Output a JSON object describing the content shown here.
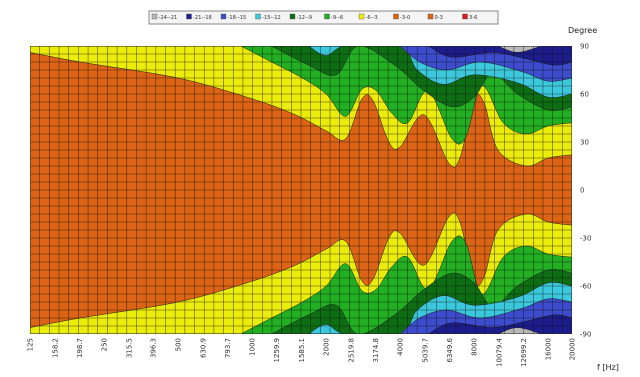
{
  "chart_data": {
    "type": "heatmap",
    "title": "",
    "xlabel": "f [Hz]",
    "ylabel": "Degree",
    "x_scale": "log",
    "x_ticks": [
      "125",
      "158.2",
      "198.7",
      "250",
      "315.5",
      "396.3",
      "500",
      "630.9",
      "793.7",
      "1000",
      "1259.9",
      "1585.1",
      "2000",
      "2519.8",
      "3174.8",
      "4000",
      "5039.7",
      "6349.6",
      "8000",
      "10079.4",
      "12699.2",
      "16000",
      "20000"
    ],
    "y_ticks": [
      "90",
      "60",
      "30",
      "0",
      "-30",
      "-60",
      "-90"
    ],
    "ylim": [
      -90,
      90
    ],
    "grid": true,
    "legend_position": "top-center",
    "legend": [
      {
        "label": "-24--21",
        "color": "#b8b8b8"
      },
      {
        "label": "-21--18",
        "color": "#1c1c8c"
      },
      {
        "label": "-18--15",
        "color": "#3c4ccc"
      },
      {
        "label": "-15--12",
        "color": "#3cc8dc"
      },
      {
        "label": "-12--9",
        "color": "#0e6e14"
      },
      {
        "label": "-9--6",
        "color": "#22b022"
      },
      {
        "label": "-6--3",
        "color": "#ecec0a"
      },
      {
        "label": "-3-0",
        "color": "#d8640a"
      },
      {
        "label": "0-3",
        "color": "#dc6414"
      },
      {
        "label": "3-6",
        "color": "#dc1a1a"
      }
    ],
    "bands": [
      {
        "label": "-6--3",
        "color": "#ecec0a",
        "upper": [
          [
            125,
            86
          ],
          [
            200,
            80
          ],
          [
            500,
            70
          ],
          [
            1000,
            57
          ],
          [
            1500,
            47
          ],
          [
            2000,
            37
          ],
          [
            2400,
            32
          ],
          [
            2800,
            57
          ],
          [
            3100,
            56
          ],
          [
            3600,
            30
          ],
          [
            4000,
            27
          ],
          [
            5000,
            47
          ],
          [
            6300,
            17
          ],
          [
            7000,
            20
          ],
          [
            8000,
            57
          ],
          [
            8800,
            54
          ],
          [
            10000,
            25
          ],
          [
            13000,
            15
          ],
          [
            16000,
            20
          ],
          [
            20000,
            22
          ]
        ],
        "lower": [
          [
            125,
            -86
          ],
          [
            200,
            -80
          ],
          [
            500,
            -70
          ],
          [
            1000,
            -57
          ],
          [
            1500,
            -47
          ],
          [
            2000,
            -37
          ],
          [
            2400,
            -32
          ],
          [
            2800,
            -57
          ],
          [
            3100,
            -56
          ],
          [
            3600,
            -30
          ],
          [
            4000,
            -27
          ],
          [
            5000,
            -47
          ],
          [
            6300,
            -17
          ],
          [
            7000,
            -20
          ],
          [
            8000,
            -57
          ],
          [
            8800,
            -54
          ],
          [
            10000,
            -25
          ],
          [
            13000,
            -15
          ],
          [
            16000,
            -20
          ],
          [
            20000,
            -22
          ]
        ]
      },
      {
        "label": "-9--6",
        "color": "#22b022",
        "upper": [
          [
            900,
            90
          ],
          [
            1200,
            80
          ],
          [
            1600,
            70
          ],
          [
            2000,
            60
          ],
          [
            2400,
            46
          ],
          [
            2800,
            63
          ],
          [
            3200,
            62
          ],
          [
            3700,
            48
          ],
          [
            4300,
            42
          ],
          [
            5200,
            62
          ],
          [
            6500,
            32
          ],
          [
            7400,
            33
          ],
          [
            8600,
            65
          ],
          [
            10500,
            42
          ],
          [
            13000,
            35
          ],
          [
            16000,
            40
          ],
          [
            20000,
            42
          ]
        ],
        "lower": [
          [
            900,
            -90
          ],
          [
            1200,
            -80
          ],
          [
            1600,
            -70
          ],
          [
            2000,
            -60
          ],
          [
            2400,
            -46
          ],
          [
            2800,
            -63
          ],
          [
            3200,
            -62
          ],
          [
            3700,
            -48
          ],
          [
            4300,
            -42
          ],
          [
            5200,
            -62
          ],
          [
            6500,
            -32
          ],
          [
            7400,
            -33
          ],
          [
            8600,
            -65
          ],
          [
            10500,
            -42
          ],
          [
            13000,
            -35
          ],
          [
            16000,
            -40
          ],
          [
            20000,
            -42
          ]
        ]
      },
      {
        "label": "-12--9",
        "color": "#0e6e14",
        "upper": [
          [
            1200,
            90
          ],
          [
            1700,
            78
          ],
          [
            2200,
            72
          ],
          [
            2700,
            90
          ],
          [
            3800,
            78
          ],
          [
            5000,
            62
          ],
          [
            6500,
            52
          ],
          [
            8000,
            58
          ],
          [
            9500,
            73
          ],
          [
            12000,
            60
          ],
          [
            16000,
            50
          ],
          [
            20000,
            52
          ]
        ],
        "lower": [
          [
            1200,
            -90
          ],
          [
            1700,
            -78
          ],
          [
            2200,
            -72
          ],
          [
            2700,
            -90
          ],
          [
            3800,
            -78
          ],
          [
            5000,
            -62
          ],
          [
            6500,
            -52
          ],
          [
            8000,
            -58
          ],
          [
            9500,
            -73
          ],
          [
            12000,
            -60
          ],
          [
            16000,
            -50
          ],
          [
            20000,
            -52
          ]
        ]
      },
      {
        "label": "-15--12",
        "color": "#3cc8dc",
        "upper": [
          [
            1700,
            90
          ],
          [
            2000,
            84
          ],
          [
            2400,
            90
          ],
          [
            4000,
            90
          ],
          [
            4700,
            75
          ],
          [
            6000,
            66
          ],
          [
            8000,
            72
          ],
          [
            12000,
            67
          ],
          [
            16000,
            58
          ],
          [
            20000,
            60
          ]
        ],
        "lower": [
          [
            1700,
            -90
          ],
          [
            2000,
            -84
          ],
          [
            2400,
            -90
          ],
          [
            4000,
            -90
          ],
          [
            4700,
            -75
          ],
          [
            6000,
            -66
          ],
          [
            8000,
            -72
          ],
          [
            12000,
            -67
          ],
          [
            16000,
            -58
          ],
          [
            20000,
            -60
          ]
        ]
      },
      {
        "label": "-18--15",
        "color": "#3c4ccc",
        "upper": [
          [
            4000,
            90
          ],
          [
            4800,
            80
          ],
          [
            6200,
            75
          ],
          [
            8500,
            80
          ],
          [
            12500,
            74
          ],
          [
            16000,
            68
          ],
          [
            20000,
            70
          ]
        ],
        "lower": [
          [
            4000,
            -90
          ],
          [
            4800,
            -80
          ],
          [
            6200,
            -75
          ],
          [
            8500,
            -80
          ],
          [
            12500,
            -74
          ],
          [
            16000,
            -68
          ],
          [
            20000,
            -70
          ]
        ]
      },
      {
        "label": "-21--18",
        "color": "#1c1c8c",
        "upper": [
          [
            5200,
            90
          ],
          [
            6500,
            83
          ],
          [
            9500,
            86
          ],
          [
            13000,
            82
          ],
          [
            17000,
            78
          ],
          [
            20000,
            80
          ]
        ],
        "lower": [
          [
            5200,
            -90
          ],
          [
            6500,
            -83
          ],
          [
            9500,
            -86
          ],
          [
            13000,
            -82
          ],
          [
            17000,
            -78
          ],
          [
            20000,
            -80
          ]
        ]
      },
      {
        "label": "-24--21",
        "color": "#b8b8b8",
        "upper": [
          [
            10000,
            90
          ],
          [
            12000,
            86
          ],
          [
            15000,
            90
          ]
        ],
        "lower": [
          [
            10000,
            -90
          ],
          [
            12000,
            -86
          ],
          [
            15000,
            -90
          ]
        ]
      }
    ]
  }
}
